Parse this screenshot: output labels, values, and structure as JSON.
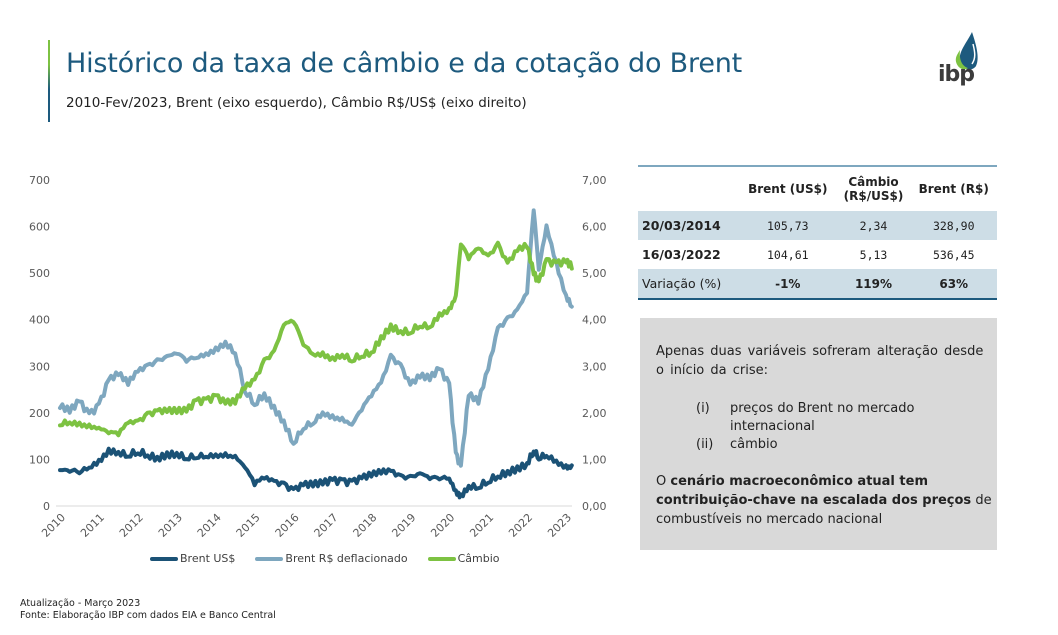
{
  "header": {
    "title": "Histórico da taxa de câmbio e da cotação do Brent",
    "subtitle": "2010-Fev/2023, Brent (eixo esquerdo), Câmbio R$/US$ (eixo direito)",
    "logo_text": "ibp",
    "logo_icon": "drop-icon"
  },
  "colors": {
    "brent_usd": "#1b5276",
    "brent_brl": "#7ea7bf",
    "cambio": "#7dc242",
    "title": "#1d5a7e",
    "table_shade": "#cddde6",
    "note_bg": "#d9d9d9"
  },
  "chart_data": {
    "type": "line",
    "title": "",
    "xlabel": "",
    "ylabel_left": "",
    "ylabel_right": "",
    "x_ticks": [
      "2010",
      "2011",
      "2012",
      "2013",
      "2014",
      "2015",
      "2016",
      "2017",
      "2018",
      "2019",
      "2020",
      "2021",
      "2022",
      "2023"
    ],
    "y_left_ticks": [
      "0",
      "100",
      "200",
      "300",
      "400",
      "500",
      "600",
      "700"
    ],
    "y_right_ticks": [
      "0,00",
      "1,00",
      "2,00",
      "3,00",
      "4,00",
      "5,00",
      "6,00",
      "7,00"
    ],
    "ylim_left": [
      0,
      700
    ],
    "ylim_right": [
      0,
      7
    ],
    "x_range": [
      2010,
      2023.2
    ],
    "legend_position": "bottom",
    "x": [
      2010.0,
      2010.25,
      2010.5,
      2010.75,
      2011.0,
      2011.25,
      2011.5,
      2011.75,
      2012.0,
      2012.25,
      2012.5,
      2012.75,
      2013.0,
      2013.25,
      2013.5,
      2013.75,
      2014.0,
      2014.25,
      2014.5,
      2014.75,
      2015.0,
      2015.25,
      2015.5,
      2015.75,
      2016.0,
      2016.25,
      2016.5,
      2016.75,
      2017.0,
      2017.25,
      2017.5,
      2017.75,
      2018.0,
      2018.25,
      2018.5,
      2018.75,
      2019.0,
      2019.25,
      2019.5,
      2019.75,
      2020.0,
      2020.17,
      2020.3,
      2020.5,
      2020.75,
      2021.0,
      2021.25,
      2021.5,
      2021.75,
      2022.0,
      2022.17,
      2022.3,
      2022.5,
      2022.75,
      2023.0,
      2023.15
    ],
    "series": [
      {
        "name": "Brent US$",
        "axis": "left",
        "values": [
          77,
          78,
          75,
          83,
          95,
          118,
          115,
          110,
          118,
          110,
          102,
          110,
          112,
          104,
          108,
          108,
          108,
          108,
          105,
          85,
          50,
          62,
          52,
          45,
          33,
          46,
          47,
          50,
          55,
          52,
          50,
          60,
          68,
          74,
          75,
          62,
          60,
          70,
          62,
          62,
          60,
          30,
          20,
          42,
          42,
          55,
          65,
          72,
          80,
          90,
          120,
          105,
          110,
          95,
          82,
          84
        ]
      },
      {
        "name": "Brent R$ deflacionado",
        "axis": "left",
        "values": [
          215,
          205,
          225,
          195,
          215,
          270,
          285,
          265,
          290,
          300,
          310,
          320,
          330,
          315,
          320,
          325,
          335,
          350,
          330,
          250,
          220,
          240,
          210,
          180,
          135,
          170,
          180,
          200,
          190,
          185,
          175,
          210,
          240,
          265,
          320,
          300,
          260,
          280,
          275,
          295,
          260,
          110,
          85,
          240,
          225,
          295,
          380,
          400,
          420,
          460,
          640,
          510,
          600,
          520,
          450,
          430
        ]
      },
      {
        "name": "Câmbio",
        "axis": "right",
        "values": [
          1.78,
          1.8,
          1.75,
          1.7,
          1.67,
          1.6,
          1.57,
          1.8,
          1.8,
          1.95,
          2.03,
          2.05,
          2.05,
          2.05,
          2.25,
          2.25,
          2.35,
          2.22,
          2.25,
          2.55,
          2.7,
          3.1,
          3.3,
          3.9,
          4.0,
          3.5,
          3.25,
          3.25,
          3.15,
          3.25,
          3.15,
          3.25,
          3.3,
          3.6,
          3.85,
          3.75,
          3.75,
          3.9,
          3.85,
          4.1,
          4.2,
          4.5,
          5.65,
          5.35,
          5.55,
          5.35,
          5.6,
          5.2,
          5.5,
          5.6,
          5.0,
          4.8,
          5.25,
          5.2,
          5.25,
          5.15
        ]
      }
    ]
  },
  "legend": [
    "Brent US$",
    "Brent R$ deflacionado",
    "Câmbio"
  ],
  "table": {
    "headers": [
      "",
      "Brent (US$)",
      "Câmbio (R$/US$)",
      "Brent (R$)"
    ],
    "rows": [
      {
        "label": "20/03/2014",
        "brent_usd": "105,73",
        "cambio": "2,34",
        "brent_brl": "328,90"
      },
      {
        "label": "16/03/2022",
        "brent_usd": "104,61",
        "cambio": "5,13",
        "brent_brl": "536,45"
      },
      {
        "label": "Variação (%)",
        "brent_usd": "-1%",
        "cambio": "119%",
        "brent_brl": "63%"
      }
    ],
    "cambio_header_line1": "Câmbio",
    "cambio_header_line2": "(R$/US$)"
  },
  "note": {
    "intro": "Apenas duas variáveis sofreram alteração desde o início da crise:",
    "items": [
      {
        "num": "(i)",
        "text": "preços do Brent no mercado internacional"
      },
      {
        "num": "(ii)",
        "text": "câmbio"
      }
    ],
    "conclusion_prefix": "O ",
    "conclusion_bold": "cenário macroeconômico atual tem contribuição-chave na escalada dos preços",
    "conclusion_suffix": " de combustíveis no mercado nacional"
  },
  "footer": {
    "update": "Atualização - Março 2023",
    "source": "Fonte: Elaboração IBP com dados EIA e Banco Central"
  }
}
